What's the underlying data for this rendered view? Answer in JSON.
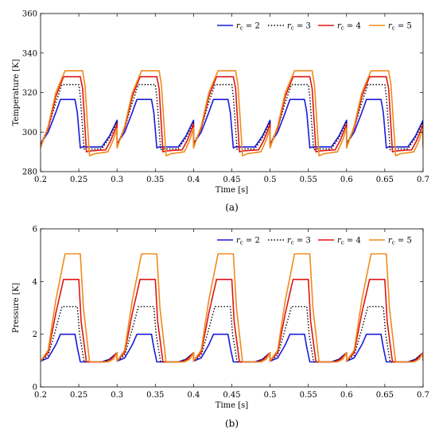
{
  "chart_data": [
    {
      "type": "line",
      "panel_label": "(a)",
      "xlabel": "Time [s]",
      "ylabel": "Temperature [K]",
      "xlim": [
        0.2,
        0.7
      ],
      "ylim": [
        280,
        360
      ],
      "xticks": [
        "0.2",
        "0.25",
        "0.3",
        "0.35",
        "0.4",
        "0.45",
        "0.5",
        "0.55",
        "0.6",
        "0.65",
        "0.7"
      ],
      "yticks": [
        "280",
        "300",
        "320",
        "340",
        "360"
      ],
      "grid": false,
      "legend_position": "top-right",
      "cycle_period": 0.1,
      "series": [
        {
          "name": "r_c = 2",
          "label_main": "r",
          "label_sub": "c",
          "label_tail": " = 2",
          "color": "#1a1adb",
          "dash": "solid",
          "cycle": [
            [
              0.0,
              294
            ],
            [
              0.01,
              300
            ],
            [
              0.02,
              310
            ],
            [
              0.026,
              316.5
            ],
            [
              0.045,
              316.5
            ],
            [
              0.048,
              310
            ],
            [
              0.052,
              292
            ],
            [
              0.055,
              292.5
            ],
            [
              0.08,
              292.5
            ],
            [
              0.09,
              298
            ],
            [
              0.1,
              306
            ]
          ]
        },
        {
          "name": "r_c = 3",
          "label_main": "r",
          "label_sub": "c",
          "label_tail": " = 3",
          "color": "#000000",
          "dash": "dotted",
          "cycle": [
            [
              0.0,
              294
            ],
            [
              0.01,
              302
            ],
            [
              0.02,
              315
            ],
            [
              0.028,
              324
            ],
            [
              0.05,
              324
            ],
            [
              0.052,
              318
            ],
            [
              0.057,
              291
            ],
            [
              0.06,
              291.5
            ],
            [
              0.08,
              291.5
            ],
            [
              0.09,
              297
            ],
            [
              0.1,
              305
            ]
          ]
        },
        {
          "name": "r_c = 4",
          "label_main": "r",
          "label_sub": "c",
          "label_tail": " = 4",
          "color": "#e01414",
          "dash": "solid",
          "cycle": [
            [
              0.0,
              293
            ],
            [
              0.01,
              302
            ],
            [
              0.02,
              318
            ],
            [
              0.03,
              328
            ],
            [
              0.052,
              328
            ],
            [
              0.055,
              322
            ],
            [
              0.06,
              290
            ],
            [
              0.065,
              290.5
            ],
            [
              0.085,
              291
            ],
            [
              0.092,
              296
            ],
            [
              0.1,
              304
            ]
          ]
        },
        {
          "name": "r_c = 5",
          "label_main": "r",
          "label_sub": "c",
          "label_tail": " = 5",
          "color": "#f08a1a",
          "dash": "solid",
          "cycle": [
            [
              0.0,
              292
            ],
            [
              0.01,
              303
            ],
            [
              0.02,
              320
            ],
            [
              0.032,
              331
            ],
            [
              0.055,
              331
            ],
            [
              0.058,
              324
            ],
            [
              0.064,
              288
            ],
            [
              0.07,
              289
            ],
            [
              0.088,
              290
            ],
            [
              0.095,
              296
            ],
            [
              0.1,
              302
            ]
          ]
        }
      ]
    },
    {
      "type": "line",
      "panel_label": "(b)",
      "xlabel": "Time [s]",
      "ylabel": "Pressure [K]",
      "xlim": [
        0.2,
        0.7
      ],
      "ylim": [
        0,
        6
      ],
      "xticks": [
        "0.2",
        "0.25",
        "0.3",
        "0.35",
        "0.4",
        "0.45",
        "0.5",
        "0.55",
        "0.6",
        "0.65",
        "0.7"
      ],
      "yticks": [
        "0",
        "2",
        "4",
        "6"
      ],
      "grid": false,
      "legend_position": "top-right",
      "cycle_period": 0.1,
      "series": [
        {
          "name": "r_c = 2",
          "label_main": "r",
          "label_sub": "c",
          "label_tail": " = 2",
          "color": "#1a1adb",
          "dash": "solid",
          "cycle": [
            [
              0.0,
              0.98
            ],
            [
              0.01,
              1.1
            ],
            [
              0.02,
              1.6
            ],
            [
              0.026,
              2.0
            ],
            [
              0.045,
              2.0
            ],
            [
              0.048,
              1.5
            ],
            [
              0.052,
              0.95
            ],
            [
              0.08,
              0.95
            ],
            [
              0.09,
              1.05
            ],
            [
              0.1,
              1.3
            ]
          ]
        },
        {
          "name": "r_c = 3",
          "label_main": "r",
          "label_sub": "c",
          "label_tail": " = 3",
          "color": "#000000",
          "dash": "dotted",
          "cycle": [
            [
              0.0,
              0.98
            ],
            [
              0.01,
              1.2
            ],
            [
              0.02,
              2.2
            ],
            [
              0.028,
              3.05
            ],
            [
              0.048,
              3.05
            ],
            [
              0.051,
              2.0
            ],
            [
              0.057,
              0.95
            ],
            [
              0.08,
              0.95
            ],
            [
              0.09,
              1.05
            ],
            [
              0.1,
              1.3
            ]
          ]
        },
        {
          "name": "r_c = 4",
          "label_main": "r",
          "label_sub": "c",
          "label_tail": " = 4",
          "color": "#e01414",
          "dash": "solid",
          "cycle": [
            [
              0.0,
              0.98
            ],
            [
              0.01,
              1.3
            ],
            [
              0.02,
              2.8
            ],
            [
              0.03,
              4.08
            ],
            [
              0.05,
              4.08
            ],
            [
              0.053,
              2.5
            ],
            [
              0.06,
              0.95
            ],
            [
              0.085,
              0.95
            ],
            [
              0.092,
              1.05
            ],
            [
              0.1,
              1.3
            ]
          ]
        },
        {
          "name": "r_c = 5",
          "label_main": "r",
          "label_sub": "c",
          "label_tail": " = 5",
          "color": "#f08a1a",
          "dash": "solid",
          "cycle": [
            [
              0.0,
              0.98
            ],
            [
              0.01,
              1.4
            ],
            [
              0.02,
              3.3
            ],
            [
              0.032,
              5.05
            ],
            [
              0.052,
              5.05
            ],
            [
              0.056,
              3.0
            ],
            [
              0.064,
              0.95
            ],
            [
              0.088,
              0.95
            ],
            [
              0.095,
              1.05
            ],
            [
              0.1,
              1.3
            ]
          ]
        }
      ]
    }
  ]
}
